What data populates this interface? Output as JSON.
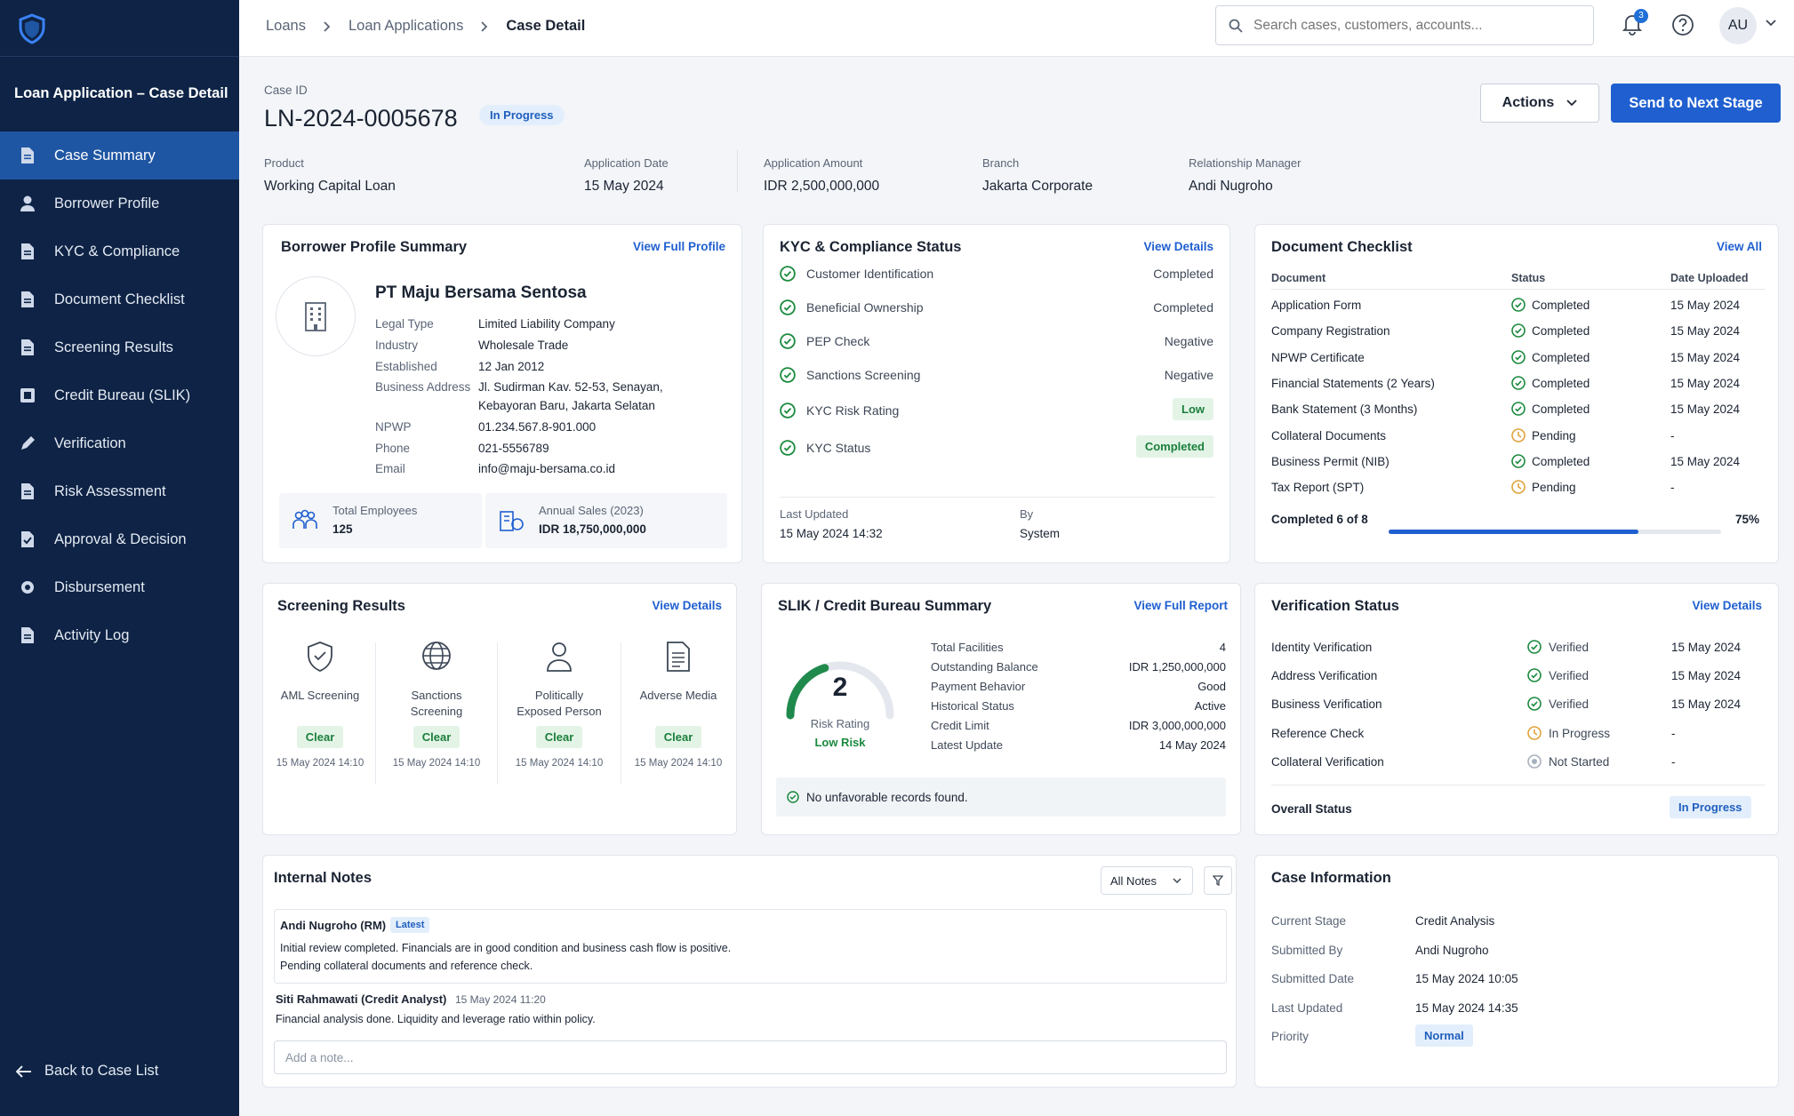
{
  "sidebar": {
    "title": "Loan Application – Case Detail",
    "items": [
      {
        "label": "Case Summary",
        "icon": "document-icon",
        "active": true
      },
      {
        "label": "Borrower Profile",
        "icon": "user-icon"
      },
      {
        "label": "KYC & Compliance",
        "icon": "document-icon"
      },
      {
        "label": "Document Checklist",
        "icon": "document-icon"
      },
      {
        "label": "Screening Results",
        "icon": "document-icon"
      },
      {
        "label": "Credit Bureau (SLIK)",
        "icon": "bureau-icon"
      },
      {
        "label": "Verification",
        "icon": "pen-icon"
      },
      {
        "label": "Risk Assessment",
        "icon": "document-icon"
      },
      {
        "label": "Approval & Decision",
        "icon": "check-document-icon"
      },
      {
        "label": "Disbursement",
        "icon": "coins-icon"
      },
      {
        "label": "Activity Log",
        "icon": "document-icon"
      }
    ],
    "back_label": "Back to Case List"
  },
  "topbar": {
    "breadcrumbs": [
      "Loans",
      "Loan Applications",
      "Case Detail"
    ],
    "search_placeholder": "Search cases, customers, accounts...",
    "notification_count": "3",
    "avatar_initials": "AU"
  },
  "header": {
    "case_id_label": "Case ID",
    "case_id": "LN-2024-0005678",
    "status": "In Progress",
    "actions_label": "Actions",
    "send_label": "Send to Next Stage",
    "meta": [
      {
        "label": "Product",
        "value": "Working Capital Loan"
      },
      {
        "label": "Application Date",
        "value": "15 May 2024"
      },
      {
        "label": "Application Amount",
        "value": "IDR 2,500,000,000"
      },
      {
        "label": "Branch",
        "value": "Jakarta Corporate"
      },
      {
        "label": "Relationship Manager",
        "value": "Andi Nugroho"
      }
    ]
  },
  "borrower": {
    "title": "Borrower Profile Summary",
    "link": "View Full Profile",
    "company": "PT Maju Bersama Sentosa",
    "fields": [
      {
        "label": "Legal Type",
        "value": "Limited Liability Company"
      },
      {
        "label": "Industry",
        "value": "Wholesale Trade"
      },
      {
        "label": "Established",
        "value": "12 Jan 2012"
      },
      {
        "label": "Business Address",
        "value": "Jl. Sudirman Kav. 52-53, Senayan,",
        "value2": "Kebayoran Baru, Jakarta Selatan"
      },
      {
        "label": "NPWP",
        "value": "01.234.567.8-901.000"
      },
      {
        "label": "Phone",
        "value": "021-5556789"
      },
      {
        "label": "Email",
        "value": "info@maju-bersama.co.id"
      }
    ],
    "employees_label": "Total Employees",
    "employees_value": "125",
    "sales_label": "Annual Sales (2023)",
    "sales_value": "IDR 18,750,000,000"
  },
  "kyc": {
    "title": "KYC & Compliance Status",
    "link": "View Details",
    "items": [
      {
        "label": "Customer Identification",
        "value": "Completed"
      },
      {
        "label": "Beneficial Ownership",
        "value": "Completed"
      },
      {
        "label": "PEP Check",
        "value": "Negative"
      },
      {
        "label": "Sanctions Screening",
        "value": "Negative"
      },
      {
        "label": "KYC Risk Rating",
        "value": "Low"
      },
      {
        "label": "KYC Status",
        "value": "Completed"
      }
    ],
    "updated_label": "Last Updated",
    "updated_value": "15 May 2024 14:32",
    "by_label": "By",
    "by_value": "System"
  },
  "documents": {
    "title": "Document Checklist",
    "link": "View All",
    "headers": [
      "Document",
      "Status",
      "Date Uploaded"
    ],
    "rows": [
      {
        "doc": "Application Form",
        "status": "Completed",
        "date": "15 May 2024"
      },
      {
        "doc": "Company Registration",
        "status": "Completed",
        "date": "15 May 2024"
      },
      {
        "doc": "NPWP Certificate",
        "status": "Completed",
        "date": "15 May 2024"
      },
      {
        "doc": "Financial Statements (2 Years)",
        "status": "Completed",
        "date": "15 May 2024"
      },
      {
        "doc": "Bank Statement (3 Months)",
        "status": "Completed",
        "date": "15 May 2024"
      },
      {
        "doc": "Collateral Documents",
        "status": "Pending",
        "date": "-"
      },
      {
        "doc": "Business Permit (NIB)",
        "status": "Completed",
        "date": "15 May 2024"
      },
      {
        "doc": "Tax Report (SPT)",
        "status": "Pending",
        "date": "-"
      }
    ],
    "progress_label": "Completed 6 of 8",
    "progress_pct": "75%",
    "progress_fraction": 0.75
  },
  "screening": {
    "title": "Screening Results",
    "link": "View Details",
    "items": [
      {
        "label": "AML Screening",
        "label2": "",
        "icon": "shield-check-icon",
        "status": "Clear",
        "time": "15 May 2024 14:10"
      },
      {
        "label": "Sanctions",
        "label2": "Screening",
        "icon": "globe-icon",
        "status": "Clear",
        "time": "15 May 2024 14:10"
      },
      {
        "label": "Politically",
        "label2": "Exposed Person",
        "icon": "person-icon",
        "status": "Clear",
        "time": "15 May 2024 14:10"
      },
      {
        "label": "Adverse Media",
        "label2": "",
        "icon": "news-icon",
        "status": "Clear",
        "time": "15 May 2024 14:10"
      }
    ]
  },
  "slik": {
    "title": "SLIK / Credit Bureau Summary",
    "link": "View Full Report",
    "score": "2",
    "score_fraction": 0.4,
    "rating_label": "Risk Rating",
    "rating_value": "Low Risk",
    "rows": [
      {
        "label": "Total Facilities",
        "value": "4"
      },
      {
        "label": "Outstanding Balance",
        "value": "IDR 1,250,000,000"
      },
      {
        "label": "Payment Behavior",
        "value": "Good"
      },
      {
        "label": "Historical Status",
        "value": "Active"
      },
      {
        "label": "Credit Limit",
        "value": "IDR 3,000,000,000"
      },
      {
        "label": "Latest Update",
        "value": "14 May 2024"
      }
    ],
    "note": "No unfavorable records found."
  },
  "verification": {
    "title": "Verification Status",
    "link": "View Details",
    "rows": [
      {
        "label": "Identity Verification",
        "status": "Verified",
        "date": "15 May 2024"
      },
      {
        "label": "Address Verification",
        "status": "Verified",
        "date": "15 May 2024"
      },
      {
        "label": "Business Verification",
        "status": "Verified",
        "date": "15 May 2024"
      },
      {
        "label": "Reference Check",
        "status": "In Progress",
        "date": "-"
      },
      {
        "label": "Collateral Verification",
        "status": "Not Started",
        "date": "-"
      }
    ],
    "overall_label": "Overall Status",
    "overall_value": "In Progress"
  },
  "notes": {
    "title": "Internal Notes",
    "filter": "All Notes",
    "entries": [
      {
        "author": "Andi Nugroho (RM)",
        "tag": "Latest",
        "time": "",
        "line1": "Initial review completed. Financials are in good condition and business cash flow is positive.",
        "line2": "Pending collateral documents and reference check."
      },
      {
        "author": "Siti Rahmawati (Credit Analyst)",
        "tag": "",
        "time": "15 May 2024 11:20",
        "line1": "Financial analysis done. Liquidity and leverage ratio within policy.",
        "line2": ""
      }
    ],
    "placeholder": "Add a note..."
  },
  "case_info": {
    "title": "Case Information",
    "rows": [
      {
        "label": "Current Stage",
        "value": "Credit Analysis"
      },
      {
        "label": "Submitted By",
        "value": "Andi Nugroho"
      },
      {
        "label": "Submitted Date",
        "value": "15 May 2024 10:05"
      },
      {
        "label": "Last Updated",
        "value": "15 May 2024 14:35"
      },
      {
        "label": "Priority",
        "value": "Normal"
      }
    ]
  },
  "colors": {
    "sidebar_bg": "#0e2345",
    "accent": "#1f5fd0",
    "success": "#1b8a3e",
    "pending": "#e0a23a"
  }
}
